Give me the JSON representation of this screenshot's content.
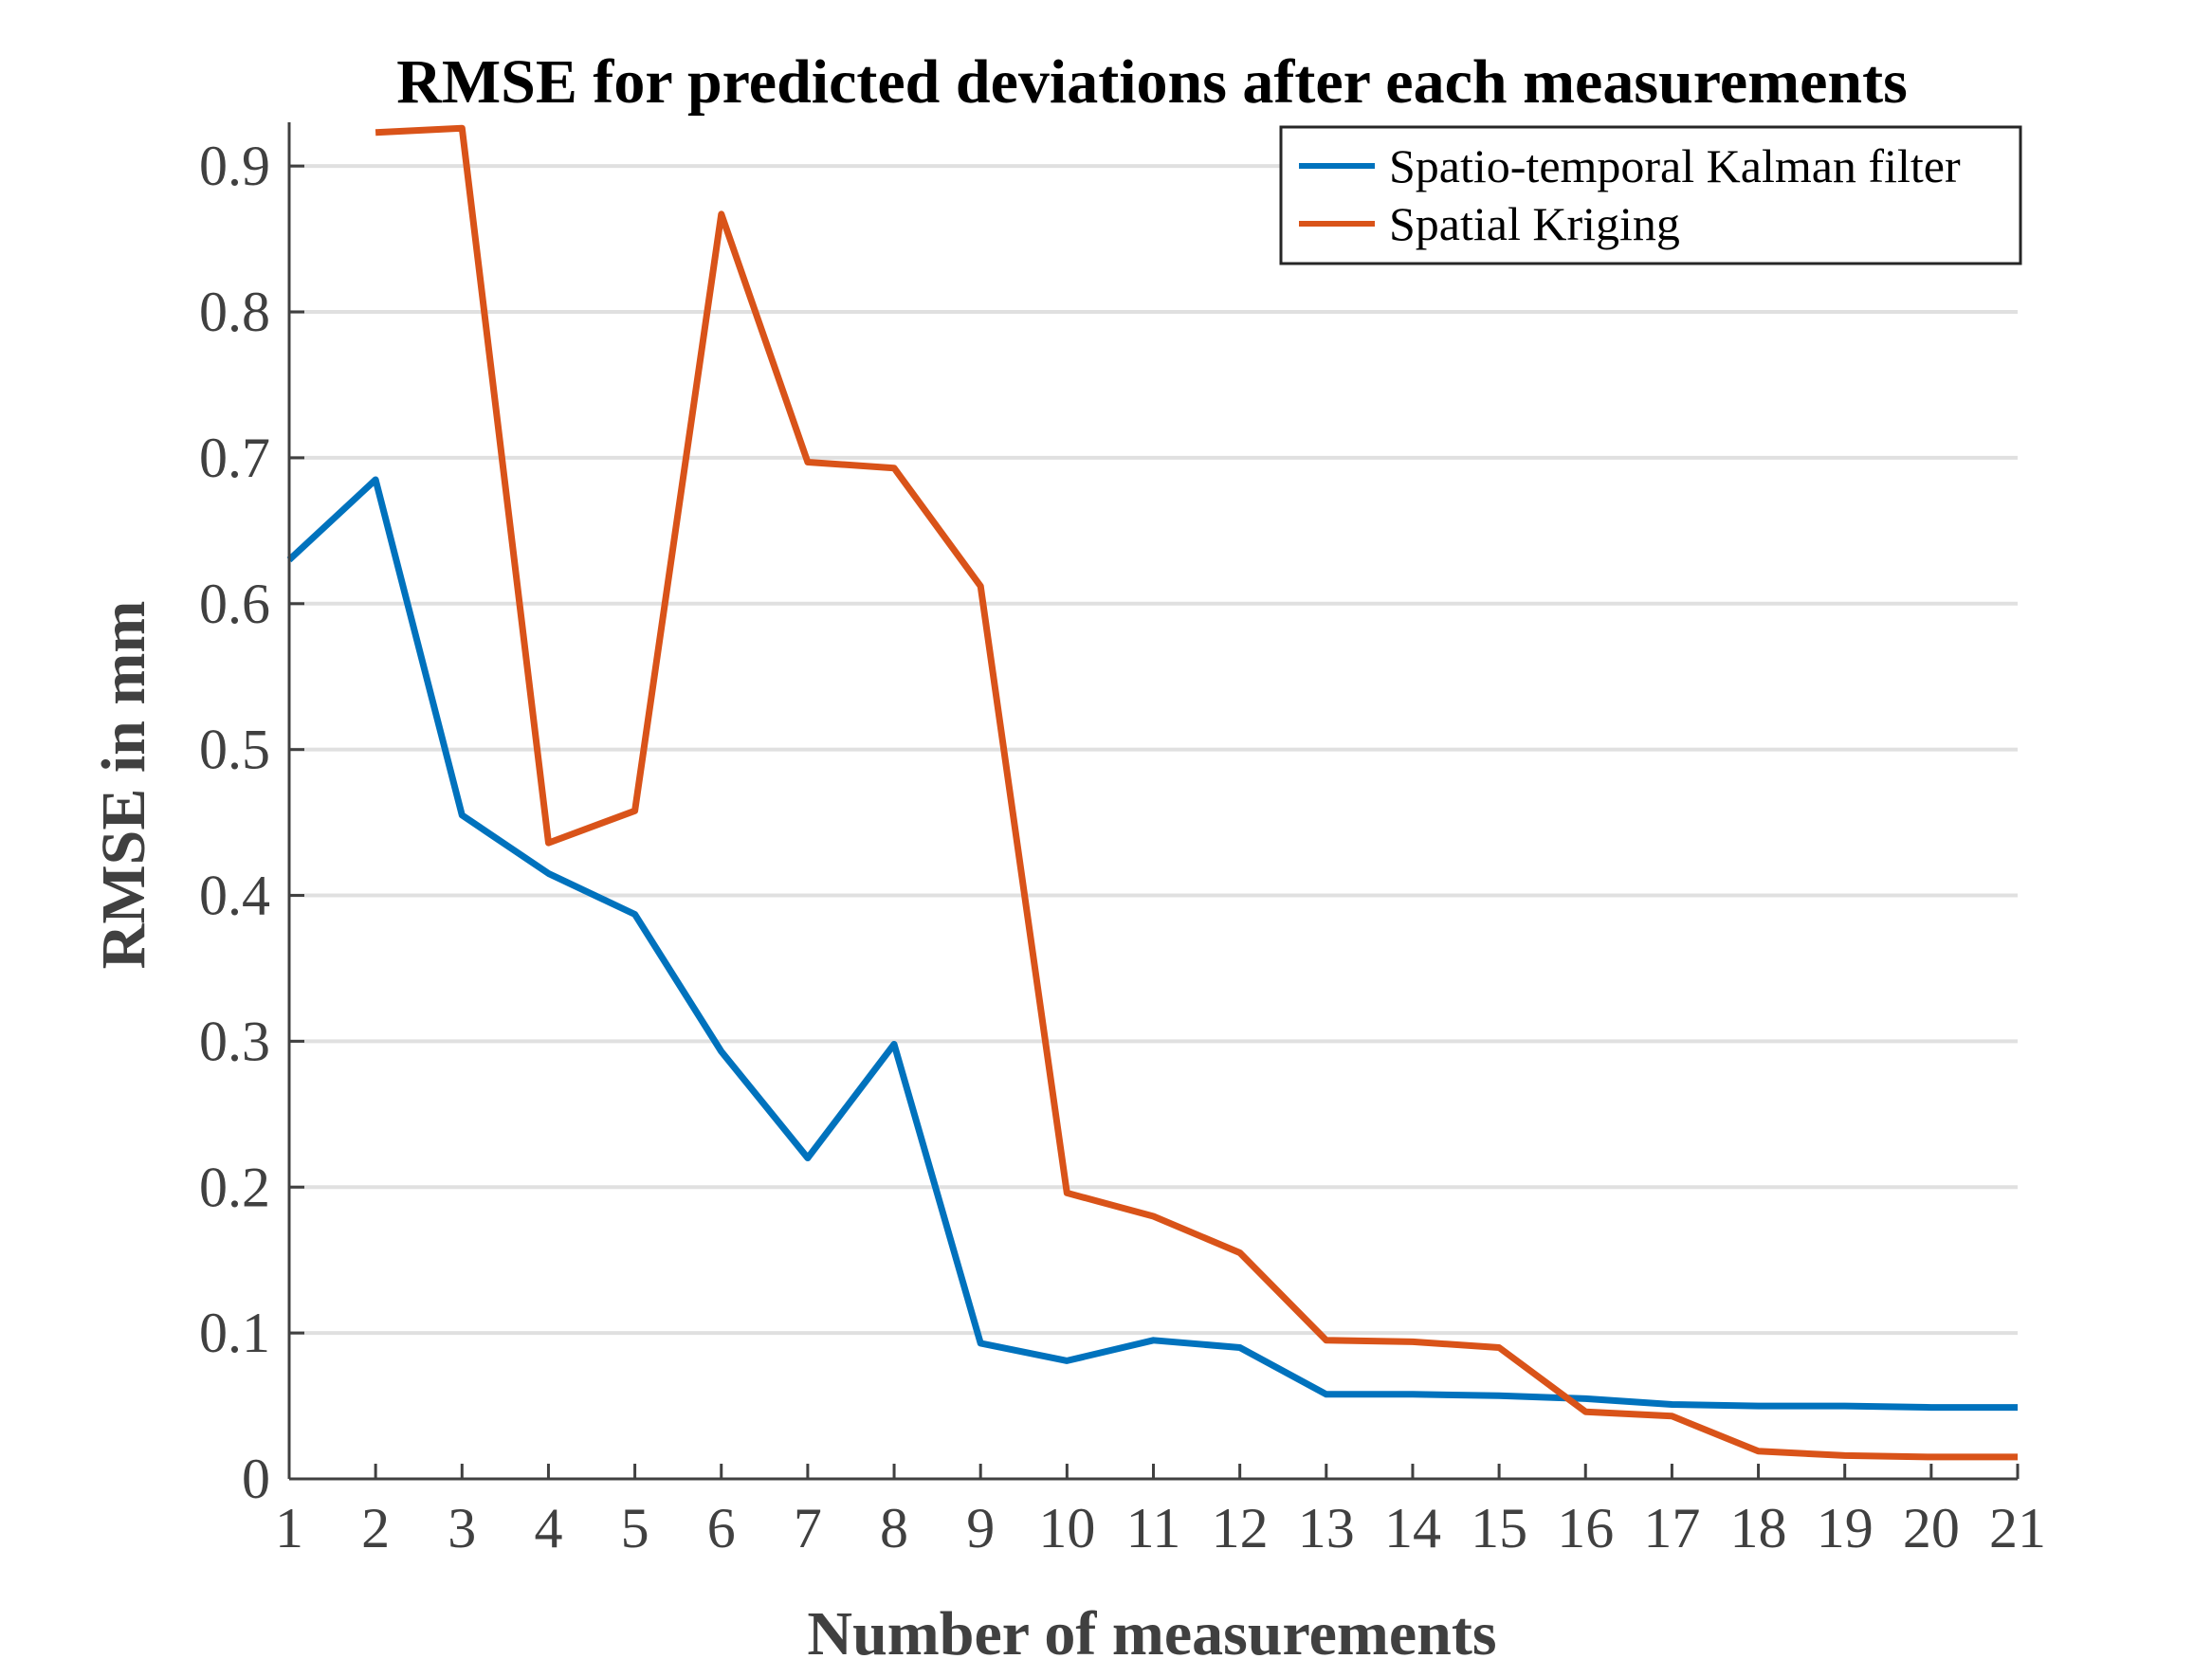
{
  "chart_data": {
    "type": "line",
    "title": "RMSE for predicted deviations after each measurements",
    "xlabel": "Number of measurements",
    "ylabel": "RMSE in mm",
    "x": [
      1,
      2,
      3,
      4,
      5,
      6,
      7,
      8,
      9,
      10,
      11,
      12,
      13,
      14,
      15,
      16,
      17,
      18,
      19,
      20,
      21
    ],
    "xlim": [
      1,
      21
    ],
    "ylim": [
      0,
      0.93
    ],
    "xticks": [
      "1",
      "2",
      "3",
      "4",
      "5",
      "6",
      "7",
      "8",
      "9",
      "10",
      "11",
      "12",
      "13",
      "14",
      "15",
      "16",
      "17",
      "18",
      "19",
      "20",
      "21"
    ],
    "yticks": [
      0,
      0.1,
      0.2,
      0.3,
      0.4,
      0.5,
      0.6,
      0.7,
      0.8,
      0.9
    ],
    "ytick_labels": [
      "0",
      "0.1",
      "0.2",
      "0.3",
      "0.4",
      "0.5",
      "0.6",
      "0.7",
      "0.8",
      "0.9"
    ],
    "grid": "horizontal",
    "legend_position": "top-right",
    "series": [
      {
        "name": "Spatio-temporal Kalman filter",
        "color": "#0072BD",
        "values": [
          0.63,
          0.685,
          0.455,
          0.415,
          0.387,
          0.293,
          0.22,
          0.298,
          0.093,
          0.081,
          0.095,
          0.09,
          0.058,
          0.058,
          0.057,
          0.055,
          0.051,
          0.05,
          0.05,
          0.049,
          0.049
        ]
      },
      {
        "name": "Spatial Kriging",
        "color": "#D95319",
        "values": [
          null,
          0.923,
          0.926,
          0.436,
          0.458,
          0.867,
          0.697,
          0.693,
          0.612,
          0.196,
          0.18,
          0.155,
          0.095,
          0.094,
          0.09,
          0.046,
          0.043,
          0.019,
          0.016,
          0.015,
          0.015
        ]
      }
    ]
  }
}
